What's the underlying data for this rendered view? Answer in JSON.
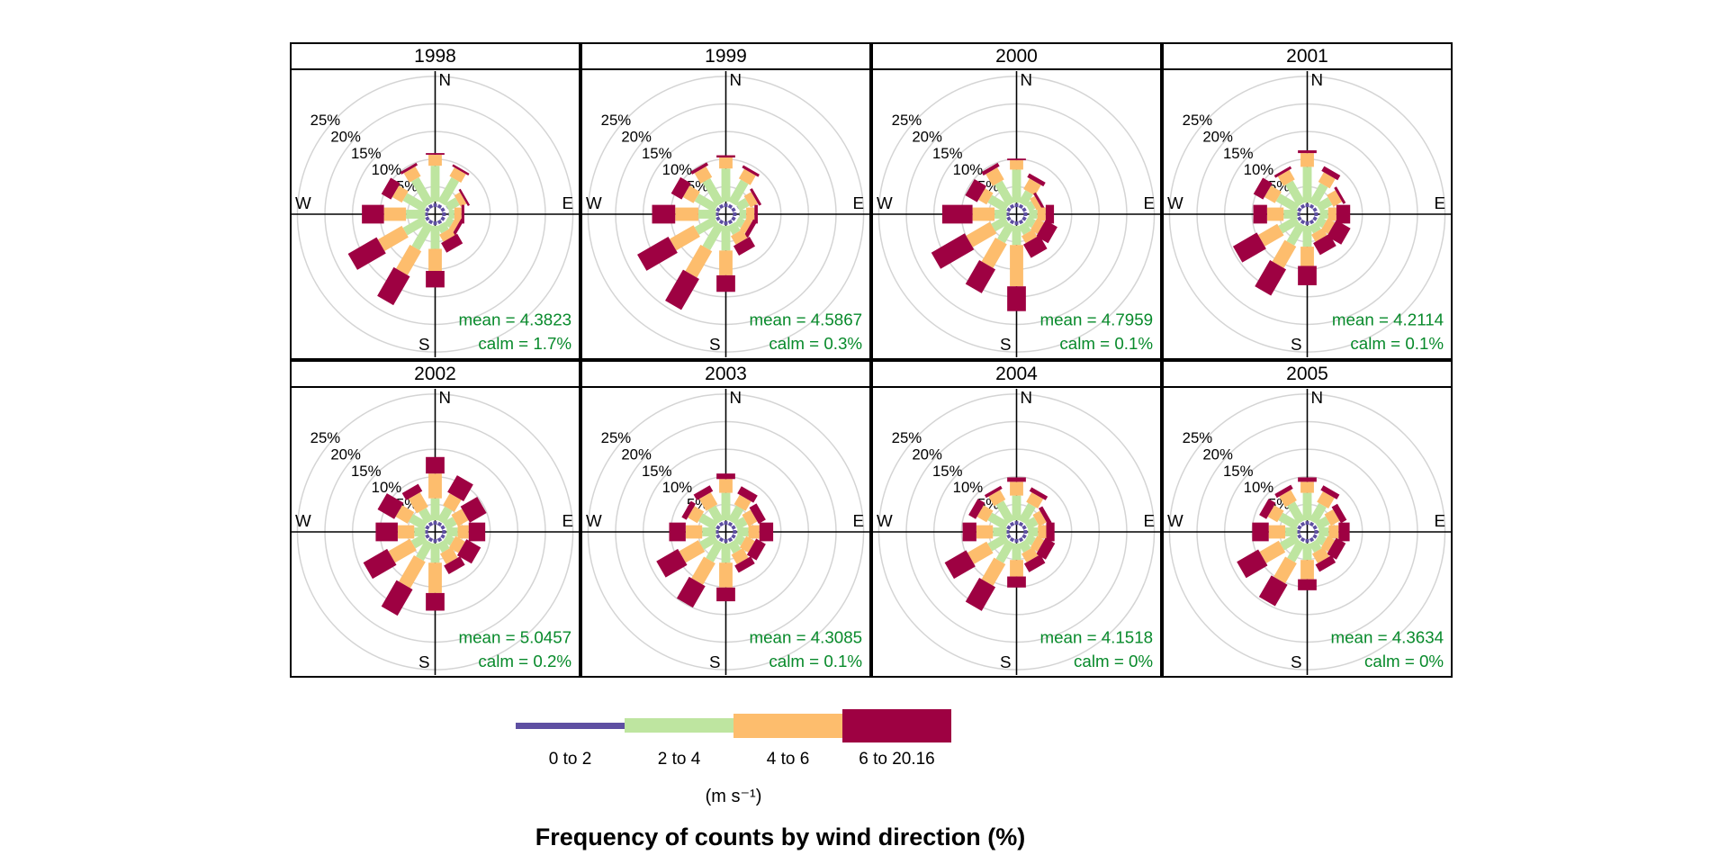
{
  "title": "Frequency of counts by wind direction (%)",
  "legend": {
    "units_label": "(m s⁻¹)",
    "bins": [
      {
        "label": "0 to 2",
        "color": "#5E4FA2",
        "thickness": 7
      },
      {
        "label": "2 to 4",
        "color": "#BEE5A0",
        "thickness": 16
      },
      {
        "label": "4 to 6",
        "color": "#FDBD6D",
        "thickness": 27
      },
      {
        "label": "6 to 20.16",
        "color": "#9E0142",
        "thickness": 37
      }
    ]
  },
  "axes": {
    "compass": {
      "north": "N",
      "east": "E",
      "south": "S",
      "west": "W"
    },
    "ring_labels": [
      "5%",
      "10%",
      "15%",
      "20%",
      "25%"
    ],
    "ring_percent": [
      5,
      10,
      15,
      20,
      25
    ],
    "grid_color": "#d4d4d4",
    "axis_color": "#000000",
    "stats_color": "#088A2B"
  },
  "chart_data": {
    "type": "wind-rose",
    "title": "Frequency of counts by wind direction (%)",
    "units": "m s-1",
    "speed_bins": [
      "0 to 2",
      "2 to 4",
      "4 to 6",
      "6 to 20.16"
    ],
    "bin_colors": [
      "#5E4FA2",
      "#BEE5A0",
      "#FDBD6D",
      "#9E0142"
    ],
    "directions_deg": [
      0,
      30,
      60,
      90,
      120,
      150,
      180,
      210,
      240,
      270,
      300,
      330
    ],
    "radial_axis_percent": [
      5,
      10,
      15,
      20,
      25
    ],
    "panels": [
      {
        "year": "1998",
        "mean": 4.3823,
        "calm_pct": "1.7%",
        "mean_label": "mean = 4.3823",
        "calm_label": "calm = 1.7%",
        "frequencies": [
          [
            1.0,
            6.5,
            2.0,
            0.3
          ],
          [
            1.0,
            5.0,
            1.8,
            0.4
          ],
          [
            1.2,
            2.2,
            1.2,
            0.4
          ],
          [
            1.2,
            1.0,
            1.3,
            0.5
          ],
          [
            1.0,
            1.2,
            1.0,
            0.6
          ],
          [
            0.8,
            1.5,
            1.5,
            2.0
          ],
          [
            0.8,
            4.2,
            4.0,
            3.0
          ],
          [
            0.8,
            5.0,
            5.0,
            6.0
          ],
          [
            0.8,
            4.2,
            5.0,
            6.0
          ],
          [
            0.5,
            3.5,
            4.0,
            4.0
          ],
          [
            0.8,
            4.2,
            2.0,
            2.0
          ],
          [
            0.8,
            5.2,
            2.0,
            0.5
          ]
        ]
      },
      {
        "year": "1999",
        "mean": 4.5867,
        "calm_pct": "0.3%",
        "mean_label": "mean = 4.5867",
        "calm_label": "calm = 0.3%",
        "frequencies": [
          [
            1.0,
            6.0,
            2.0,
            0.4
          ],
          [
            1.0,
            4.5,
            2.0,
            0.5
          ],
          [
            1.2,
            2.0,
            1.5,
            0.5
          ],
          [
            1.2,
            1.2,
            1.5,
            0.6
          ],
          [
            1.0,
            1.3,
            1.2,
            0.8
          ],
          [
            0.8,
            1.8,
            1.8,
            2.0
          ],
          [
            0.8,
            4.5,
            4.5,
            3.0
          ],
          [
            0.8,
            5.0,
            5.5,
            6.5
          ],
          [
            0.8,
            4.0,
            5.0,
            6.5
          ],
          [
            0.5,
            3.2,
            4.2,
            4.2
          ],
          [
            0.8,
            4.0,
            2.2,
            2.2
          ],
          [
            0.8,
            5.0,
            2.2,
            0.6
          ]
        ]
      },
      {
        "year": "2000",
        "mean": 4.7959,
        "calm_pct": "0.1%",
        "mean_label": "mean = 4.7959",
        "calm_label": "calm = 0.1%",
        "frequencies": [
          [
            0.8,
            6.0,
            1.7,
            0.3
          ],
          [
            0.8,
            2.5,
            2.2,
            0.8
          ],
          [
            1.0,
            1.2,
            1.0,
            0.5
          ],
          [
            1.0,
            1.5,
            1.5,
            1.5
          ],
          [
            0.8,
            1.5,
            1.5,
            2.5
          ],
          [
            0.8,
            1.8,
            1.5,
            2.8
          ],
          [
            0.8,
            3.5,
            7.5,
            4.5
          ],
          [
            0.8,
            3.5,
            5.0,
            5.0
          ],
          [
            0.8,
            2.8,
            5.0,
            7.0
          ],
          [
            0.5,
            2.2,
            4.0,
            5.5
          ],
          [
            0.8,
            3.5,
            1.7,
            2.5
          ],
          [
            0.8,
            4.5,
            2.5,
            0.7
          ]
        ]
      },
      {
        "year": "2001",
        "mean": 4.2114,
        "calm_pct": "0.1%",
        "mean_label": "mean = 4.2114",
        "calm_label": "calm = 0.1%",
        "frequencies": [
          [
            0.8,
            6.5,
            2.5,
            0.5
          ],
          [
            0.8,
            4.0,
            2.0,
            1.0
          ],
          [
            1.0,
            2.5,
            1.8,
            0.5
          ],
          [
            1.0,
            1.5,
            1.5,
            2.5
          ],
          [
            0.8,
            1.5,
            1.5,
            3.0
          ],
          [
            0.8,
            1.5,
            1.5,
            2.5
          ],
          [
            0.8,
            3.8,
            3.5,
            3.5
          ],
          [
            0.8,
            4.0,
            4.5,
            5.5
          ],
          [
            0.8,
            3.5,
            4.0,
            5.0
          ],
          [
            0.5,
            2.5,
            3.0,
            2.5
          ],
          [
            0.8,
            4.0,
            2.2,
            2.0
          ],
          [
            0.8,
            4.5,
            2.0,
            0.5
          ]
        ]
      },
      {
        "year": "2002",
        "mean": 5.0457,
        "calm_pct": "0.2%",
        "mean_label": "mean = 5.0457",
        "calm_label": "calm = 0.2%",
        "frequencies": [
          [
            0.8,
            4.0,
            4.5,
            3.0
          ],
          [
            0.8,
            2.8,
            2.5,
            3.5
          ],
          [
            0.8,
            2.0,
            2.2,
            3.5
          ],
          [
            0.8,
            2.0,
            2.0,
            3.0
          ],
          [
            0.8,
            1.5,
            2.0,
            3.0
          ],
          [
            0.8,
            1.8,
            2.2,
            1.8
          ],
          [
            0.8,
            3.5,
            5.5,
            3.2
          ],
          [
            0.8,
            3.5,
            5.5,
            5.5
          ],
          [
            0.8,
            2.5,
            4.5,
            5.0
          ],
          [
            0.5,
            2.0,
            3.0,
            4.0
          ],
          [
            0.8,
            3.0,
            2.5,
            3.5
          ],
          [
            0.8,
            2.5,
            3.0,
            1.5
          ]
        ]
      },
      {
        "year": "2003",
        "mean": 4.3085,
        "calm_pct": "0.1%",
        "mean_label": "mean = 4.3085",
        "calm_label": "calm = 0.1%",
        "frequencies": [
          [
            0.8,
            5.0,
            2.5,
            1.0
          ],
          [
            0.8,
            3.0,
            2.0,
            1.5
          ],
          [
            0.8,
            2.0,
            1.8,
            1.5
          ],
          [
            0.8,
            2.0,
            2.0,
            2.5
          ],
          [
            0.8,
            1.5,
            1.8,
            2.0
          ],
          [
            0.8,
            2.0,
            2.0,
            1.5
          ],
          [
            0.8,
            3.5,
            4.5,
            2.5
          ],
          [
            0.8,
            3.8,
            4.5,
            4.5
          ],
          [
            0.8,
            3.0,
            4.0,
            4.5
          ],
          [
            0.5,
            2.5,
            3.0,
            3.0
          ],
          [
            0.8,
            3.2,
            2.0,
            1.0
          ],
          [
            0.8,
            3.0,
            2.5,
            1.2
          ]
        ]
      },
      {
        "year": "2004",
        "mean": 4.1518,
        "calm_pct": "0%",
        "mean_label": "mean = 4.1518",
        "calm_label": "calm = 0%",
        "frequencies": [
          [
            0.8,
            4.5,
            2.5,
            0.8
          ],
          [
            0.8,
            3.5,
            2.0,
            0.8
          ],
          [
            0.8,
            2.0,
            1.5,
            0.8
          ],
          [
            0.8,
            1.8,
            1.5,
            1.5
          ],
          [
            0.8,
            1.5,
            1.5,
            2.0
          ],
          [
            0.8,
            1.8,
            1.8,
            1.8
          ],
          [
            0.8,
            3.0,
            3.0,
            2.0
          ],
          [
            0.8,
            4.0,
            4.5,
            5.0
          ],
          [
            0.8,
            3.5,
            4.0,
            4.5
          ],
          [
            0.5,
            2.5,
            3.0,
            2.5
          ],
          [
            0.8,
            3.5,
            2.0,
            1.5
          ],
          [
            0.8,
            4.0,
            2.0,
            0.6
          ]
        ]
      },
      {
        "year": "2005",
        "mean": 4.3634,
        "calm_pct": "0%",
        "mean_label": "mean = 4.3634",
        "calm_label": "calm = 0%",
        "frequencies": [
          [
            0.8,
            5.0,
            2.0,
            0.8
          ],
          [
            0.8,
            3.5,
            2.2,
            1.0
          ],
          [
            0.8,
            2.2,
            1.8,
            1.2
          ],
          [
            0.8,
            1.8,
            1.8,
            2.0
          ],
          [
            0.8,
            1.5,
            1.5,
            2.0
          ],
          [
            0.8,
            1.8,
            2.0,
            1.5
          ],
          [
            0.8,
            3.0,
            3.5,
            2.0
          ],
          [
            0.8,
            3.8,
            4.2,
            4.5
          ],
          [
            0.8,
            3.2,
            4.0,
            4.5
          ],
          [
            0.5,
            2.2,
            3.0,
            3.0
          ],
          [
            0.8,
            3.5,
            2.0,
            1.5
          ],
          [
            0.8,
            3.8,
            2.2,
            0.8
          ]
        ]
      }
    ]
  }
}
